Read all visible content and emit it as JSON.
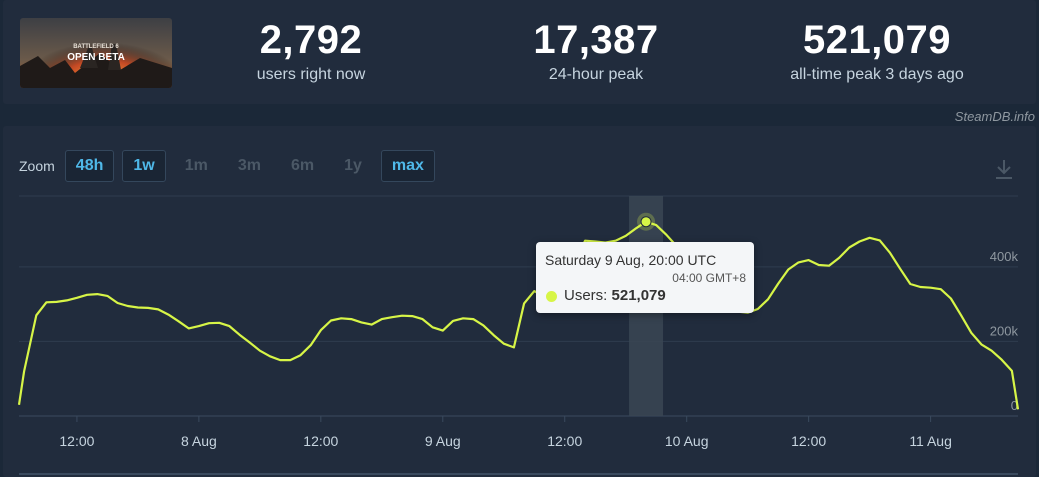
{
  "header": {
    "game_art_text": [
      "BATTLEFIELD 6",
      "OPEN BETA"
    ],
    "stats": [
      {
        "value": "2,792",
        "label": "users right now"
      },
      {
        "value": "17,387",
        "label": "24-hour peak"
      },
      {
        "value": "521,079",
        "label": "all-time peak 3 days ago"
      }
    ]
  },
  "credit": "SteamDB.info",
  "zoom": {
    "label": "Zoom",
    "buttons": [
      {
        "label": "48h",
        "state": "active"
      },
      {
        "label": "1w",
        "state": "active"
      },
      {
        "label": "1m",
        "state": "disabled"
      },
      {
        "label": "3m",
        "state": "disabled"
      },
      {
        "label": "6m",
        "state": "disabled"
      },
      {
        "label": "1y",
        "state": "disabled"
      },
      {
        "label": "max",
        "state": "active"
      }
    ]
  },
  "icons": {
    "download": "download-icon"
  },
  "tooltip": {
    "date": "Saturday 9 Aug, 20:00 UTC",
    "local": "04:00 GMT+8",
    "series_label": "Users:",
    "value": "521,079"
  },
  "colors": {
    "line": "#d7f547",
    "background": "#1b2838",
    "panel": "#212c3d",
    "accent": "#4fb8e8"
  },
  "chart_data": {
    "type": "line",
    "x_unit": "hours since 7 Aug 00:00 UTC",
    "x_ticks": [
      {
        "x": 12,
        "label": "12:00"
      },
      {
        "x": 24,
        "label": "8 Aug"
      },
      {
        "x": 36,
        "label": "12:00"
      },
      {
        "x": 48,
        "label": "9 Aug"
      },
      {
        "x": 60,
        "label": "12:00"
      },
      {
        "x": 72,
        "label": "10 Aug"
      },
      {
        "x": 84,
        "label": "12:00"
      },
      {
        "x": 96,
        "label": "11 Aug"
      }
    ],
    "y_ticks": [
      {
        "y": 0,
        "label": "0"
      },
      {
        "y": 200000,
        "label": "200k"
      },
      {
        "y": 400000,
        "label": "400k"
      }
    ],
    "xlim": [
      6.3,
      104.6
    ],
    "ylim": [
      0,
      590000
    ],
    "grid": true,
    "highlight_x": 68,
    "series": [
      {
        "name": "Users",
        "points": [
          [
            6.3,
            30000
          ],
          [
            6.8,
            120000
          ],
          [
            8.0,
            270000
          ],
          [
            9.0,
            305000
          ],
          [
            10.0,
            306000
          ],
          [
            11.0,
            310000
          ],
          [
            12.0,
            317000
          ],
          [
            13.0,
            325000
          ],
          [
            14.0,
            327000
          ],
          [
            15.0,
            322000
          ],
          [
            16.0,
            303000
          ],
          [
            17.0,
            295000
          ],
          [
            18.0,
            291000
          ],
          [
            19.0,
            290000
          ],
          [
            20.0,
            286000
          ],
          [
            21.0,
            272000
          ],
          [
            22.0,
            254000
          ],
          [
            23.0,
            235000
          ],
          [
            24.0,
            241000
          ],
          [
            25.0,
            249000
          ],
          [
            26.0,
            250000
          ],
          [
            27.0,
            241000
          ],
          [
            28.0,
            218000
          ],
          [
            29.0,
            197000
          ],
          [
            30.0,
            175000
          ],
          [
            31.0,
            160000
          ],
          [
            32.0,
            150000
          ],
          [
            33.0,
            150000
          ],
          [
            34.0,
            163000
          ],
          [
            35.0,
            190000
          ],
          [
            36.0,
            230000
          ],
          [
            37.0,
            256000
          ],
          [
            38.0,
            262000
          ],
          [
            39.0,
            260000
          ],
          [
            40.0,
            251000
          ],
          [
            41.0,
            245000
          ],
          [
            42.0,
            260000
          ],
          [
            43.0,
            265000
          ],
          [
            44.0,
            269000
          ],
          [
            45.0,
            268000
          ],
          [
            46.0,
            260000
          ],
          [
            47.0,
            238000
          ],
          [
            48.0,
            229000
          ],
          [
            49.0,
            255000
          ],
          [
            50.0,
            262000
          ],
          [
            51.0,
            260000
          ],
          [
            52.0,
            243000
          ],
          [
            53.0,
            217000
          ],
          [
            54.0,
            194000
          ],
          [
            55.0,
            184000
          ],
          [
            56.0,
            302000
          ],
          [
            57.0,
            335000
          ],
          [
            58.0,
            320000
          ],
          [
            59.0,
            333000
          ],
          [
            60.0,
            372000
          ],
          [
            61.0,
            416000
          ],
          [
            62.0,
            470000
          ],
          [
            63.0,
            468000
          ],
          [
            64.0,
            465000
          ],
          [
            65.0,
            470000
          ],
          [
            66.0,
            483000
          ],
          [
            67.0,
            503000
          ],
          [
            68.0,
            521079
          ],
          [
            69.0,
            512000
          ],
          [
            70.0,
            486000
          ],
          [
            71.0,
            456000
          ],
          [
            72.0,
            425000
          ],
          [
            73.0,
            385000
          ],
          [
            74.0,
            340000
          ],
          [
            75.0,
            298000
          ],
          [
            76.0,
            285000
          ],
          [
            77.0,
            280000
          ],
          [
            78.0,
            277000
          ],
          [
            79.0,
            287000
          ],
          [
            80.0,
            313000
          ],
          [
            81.0,
            355000
          ],
          [
            82.0,
            393000
          ],
          [
            83.0,
            412000
          ],
          [
            84.0,
            418000
          ],
          [
            85.0,
            405000
          ],
          [
            86.0,
            403000
          ],
          [
            87.0,
            424000
          ],
          [
            88.0,
            452000
          ],
          [
            89.0,
            468000
          ],
          [
            90.0,
            478000
          ],
          [
            91.0,
            471000
          ],
          [
            92.0,
            438000
          ],
          [
            93.0,
            395000
          ],
          [
            94.0,
            354000
          ],
          [
            95.0,
            346000
          ],
          [
            96.0,
            344000
          ],
          [
            97.0,
            340000
          ],
          [
            98.0,
            315000
          ],
          [
            99.0,
            270000
          ],
          [
            100.0,
            223000
          ],
          [
            101.0,
            192000
          ],
          [
            102.0,
            175000
          ],
          [
            103.0,
            151000
          ],
          [
            104.0,
            121000
          ],
          [
            104.6,
            18000
          ]
        ]
      }
    ]
  }
}
